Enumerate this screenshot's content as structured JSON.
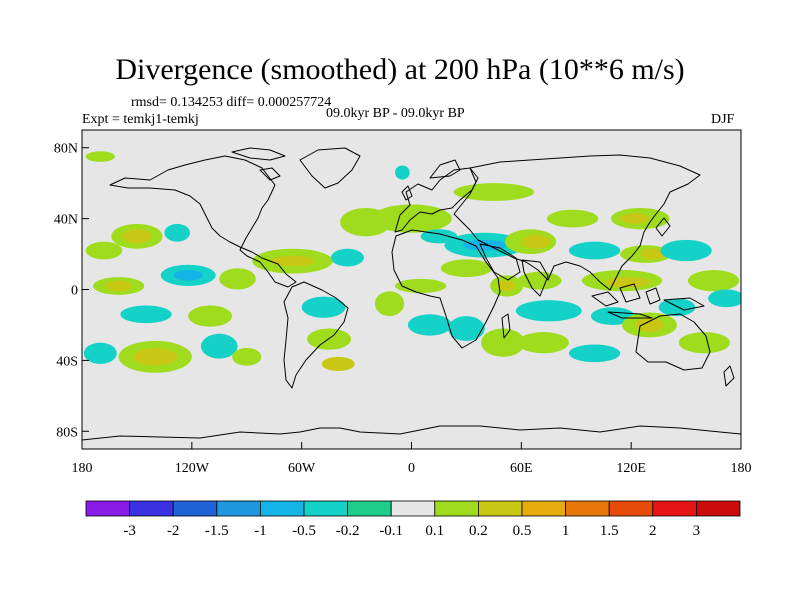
{
  "title": "Divergence (smoothed) at 200 hPa (10**6 m/s)",
  "rmsd_line": "rmsd= 0.134253 diff= 0.000257724",
  "expt_line": "Expt = temkj1-temkj",
  "period": "09.0kyr BP - 09.0kyr BP",
  "season": "DJF",
  "map": {
    "lat_ticks": [
      "80N",
      "40N",
      "0",
      "40S",
      "80S"
    ],
    "lat_values": [
      80,
      40,
      0,
      -40,
      -80
    ],
    "lon_ticks": [
      "180",
      "120W",
      "60W",
      "0",
      "60E",
      "120E",
      "180"
    ],
    "lon_values": [
      -180,
      -120,
      -60,
      0,
      60,
      120,
      180
    ],
    "background": "#e6e6e6",
    "coast_color": "#000000"
  },
  "colorbar": {
    "labels": [
      "-3",
      "-2",
      "-1.5",
      "-1",
      "-0.5",
      "-0.2",
      "-0.1",
      "0.1",
      "0.2",
      "0.5",
      "1",
      "1.5",
      "2",
      "3"
    ],
    "colors": [
      "#8a1be6",
      "#3a32e2",
      "#1e64d8",
      "#1e96e0",
      "#14b4e6",
      "#14d2c8",
      "#1ecd8c",
      "#e6e6e6",
      "#a0dc1e",
      "#c8c814",
      "#e6aa0a",
      "#e6780a",
      "#e64b0a",
      "#e61414",
      "#cc0c0c"
    ]
  },
  "fields": [
    {
      "lon": -150,
      "lat": 30,
      "rx": 14,
      "ry": 7,
      "v": 0.2
    },
    {
      "lon": -150,
      "lat": 30,
      "rx": 8,
      "ry": 4,
      "v": 0.5
    },
    {
      "lon": -168,
      "lat": 22,
      "rx": 10,
      "ry": 5,
      "v": 0.2
    },
    {
      "lon": -128,
      "lat": 32,
      "rx": 7,
      "ry": 5,
      "v": -0.2
    },
    {
      "lon": -160,
      "lat": 2,
      "rx": 14,
      "ry": 5,
      "v": 0.2
    },
    {
      "lon": -160,
      "lat": 2,
      "rx": 7,
      "ry": 3,
      "v": 0.5
    },
    {
      "lon": -122,
      "lat": 8,
      "rx": 15,
      "ry": 6,
      "v": -0.2
    },
    {
      "lon": -122,
      "lat": 8,
      "rx": 8,
      "ry": 3,
      "v": -0.5
    },
    {
      "lon": -95,
      "lat": 6,
      "rx": 10,
      "ry": 6,
      "v": 0.2
    },
    {
      "lon": -145,
      "lat": -14,
      "rx": 14,
      "ry": 5,
      "v": -0.2
    },
    {
      "lon": -110,
      "lat": -15,
      "rx": 12,
      "ry": 6,
      "v": 0.2
    },
    {
      "lon": -140,
      "lat": -38,
      "rx": 20,
      "ry": 9,
      "v": 0.2
    },
    {
      "lon": -140,
      "lat": -38,
      "rx": 12,
      "ry": 5,
      "v": 0.5
    },
    {
      "lon": -170,
      "lat": -36,
      "rx": 9,
      "ry": 6,
      "v": -0.2
    },
    {
      "lon": -105,
      "lat": -32,
      "rx": 10,
      "ry": 7,
      "v": -0.2
    },
    {
      "lon": -90,
      "lat": -38,
      "rx": 8,
      "ry": 5,
      "v": 0.2
    },
    {
      "lon": -170,
      "lat": 75,
      "rx": 8,
      "ry": 3,
      "v": 0.2
    },
    {
      "lon": -65,
      "lat": 16,
      "rx": 22,
      "ry": 7,
      "v": 0.2
    },
    {
      "lon": -65,
      "lat": 16,
      "rx": 12,
      "ry": 3,
      "v": 0.5
    },
    {
      "lon": -35,
      "lat": 18,
      "rx": 9,
      "ry": 5,
      "v": -0.2
    },
    {
      "lon": -48,
      "lat": -10,
      "rx": 12,
      "ry": 6,
      "v": -0.2
    },
    {
      "lon": -45,
      "lat": -28,
      "rx": 12,
      "ry": 6,
      "v": 0.2
    },
    {
      "lon": -40,
      "lat": -42,
      "rx": 9,
      "ry": 4,
      "v": 0.5
    },
    {
      "lon": -12,
      "lat": -8,
      "rx": 8,
      "ry": 7,
      "v": 0.2
    },
    {
      "lon": -25,
      "lat": 38,
      "rx": 14,
      "ry": 8,
      "v": 0.2
    },
    {
      "lon": -5,
      "lat": 66,
      "rx": 4,
      "ry": 4,
      "v": -0.2
    },
    {
      "lon": 0,
      "lat": 40,
      "rx": 22,
      "ry": 8,
      "v": 0.2
    },
    {
      "lon": 15,
      "lat": 30,
      "rx": 10,
      "ry": 4,
      "v": -0.2
    },
    {
      "lon": 5,
      "lat": 2,
      "rx": 14,
      "ry": 4,
      "v": 0.2
    },
    {
      "lon": 30,
      "lat": 12,
      "rx": 14,
      "ry": 5,
      "v": 0.2
    },
    {
      "lon": 40,
      "lat": 25,
      "rx": 22,
      "ry": 7,
      "v": -0.2
    },
    {
      "lon": 40,
      "lat": 25,
      "rx": 12,
      "ry": 3,
      "v": -0.5
    },
    {
      "lon": 65,
      "lat": 27,
      "rx": 14,
      "ry": 7,
      "v": 0.2
    },
    {
      "lon": 68,
      "lat": 27,
      "rx": 8,
      "ry": 4,
      "v": 0.5
    },
    {
      "lon": 45,
      "lat": 55,
      "rx": 22,
      "ry": 5,
      "v": 0.2
    },
    {
      "lon": 10,
      "lat": -20,
      "rx": 12,
      "ry": 6,
      "v": -0.2
    },
    {
      "lon": 30,
      "lat": -22,
      "rx": 10,
      "ry": 7,
      "v": -0.2
    },
    {
      "lon": 52,
      "lat": 2,
      "rx": 9,
      "ry": 6,
      "v": 0.2
    },
    {
      "lon": 52,
      "lat": 2,
      "rx": 5,
      "ry": 3,
      "v": 0.5
    },
    {
      "lon": 50,
      "lat": -30,
      "rx": 12,
      "ry": 8,
      "v": 0.2
    },
    {
      "lon": 75,
      "lat": -12,
      "rx": 18,
      "ry": 6,
      "v": -0.2
    },
    {
      "lon": 72,
      "lat": -30,
      "rx": 14,
      "ry": 6,
      "v": 0.2
    },
    {
      "lon": 70,
      "lat": 5,
      "rx": 12,
      "ry": 5,
      "v": 0.2
    },
    {
      "lon": 88,
      "lat": 40,
      "rx": 14,
      "ry": 5,
      "v": 0.2
    },
    {
      "lon": 100,
      "lat": 22,
      "rx": 14,
      "ry": 5,
      "v": -0.2
    },
    {
      "lon": 115,
      "lat": 5,
      "rx": 22,
      "ry": 6,
      "v": 0.2
    },
    {
      "lon": 118,
      "lat": 4,
      "rx": 12,
      "ry": 3,
      "v": 0.5
    },
    {
      "lon": 128,
      "lat": 20,
      "rx": 14,
      "ry": 5,
      "v": 0.2
    },
    {
      "lon": 132,
      "lat": 20,
      "rx": 7,
      "ry": 3,
      "v": 0.5
    },
    {
      "lon": 125,
      "lat": 40,
      "rx": 16,
      "ry": 6,
      "v": 0.2
    },
    {
      "lon": 122,
      "lat": 40,
      "rx": 8,
      "ry": 3,
      "v": 0.5
    },
    {
      "lon": 150,
      "lat": 22,
      "rx": 14,
      "ry": 6,
      "v": -0.2
    },
    {
      "lon": 165,
      "lat": 5,
      "rx": 14,
      "ry": 6,
      "v": 0.2
    },
    {
      "lon": 110,
      "lat": -15,
      "rx": 12,
      "ry": 5,
      "v": -0.2
    },
    {
      "lon": 130,
      "lat": -20,
      "rx": 15,
      "ry": 7,
      "v": 0.2
    },
    {
      "lon": 130,
      "lat": -20,
      "rx": 8,
      "ry": 4,
      "v": 0.5
    },
    {
      "lon": 145,
      "lat": -10,
      "rx": 10,
      "ry": 5,
      "v": -0.2
    },
    {
      "lon": 100,
      "lat": -36,
      "rx": 14,
      "ry": 5,
      "v": -0.2
    },
    {
      "lon": 160,
      "lat": -30,
      "rx": 14,
      "ry": 6,
      "v": 0.2
    },
    {
      "lon": 172,
      "lat": -5,
      "rx": 10,
      "ry": 5,
      "v": -0.2
    }
  ]
}
